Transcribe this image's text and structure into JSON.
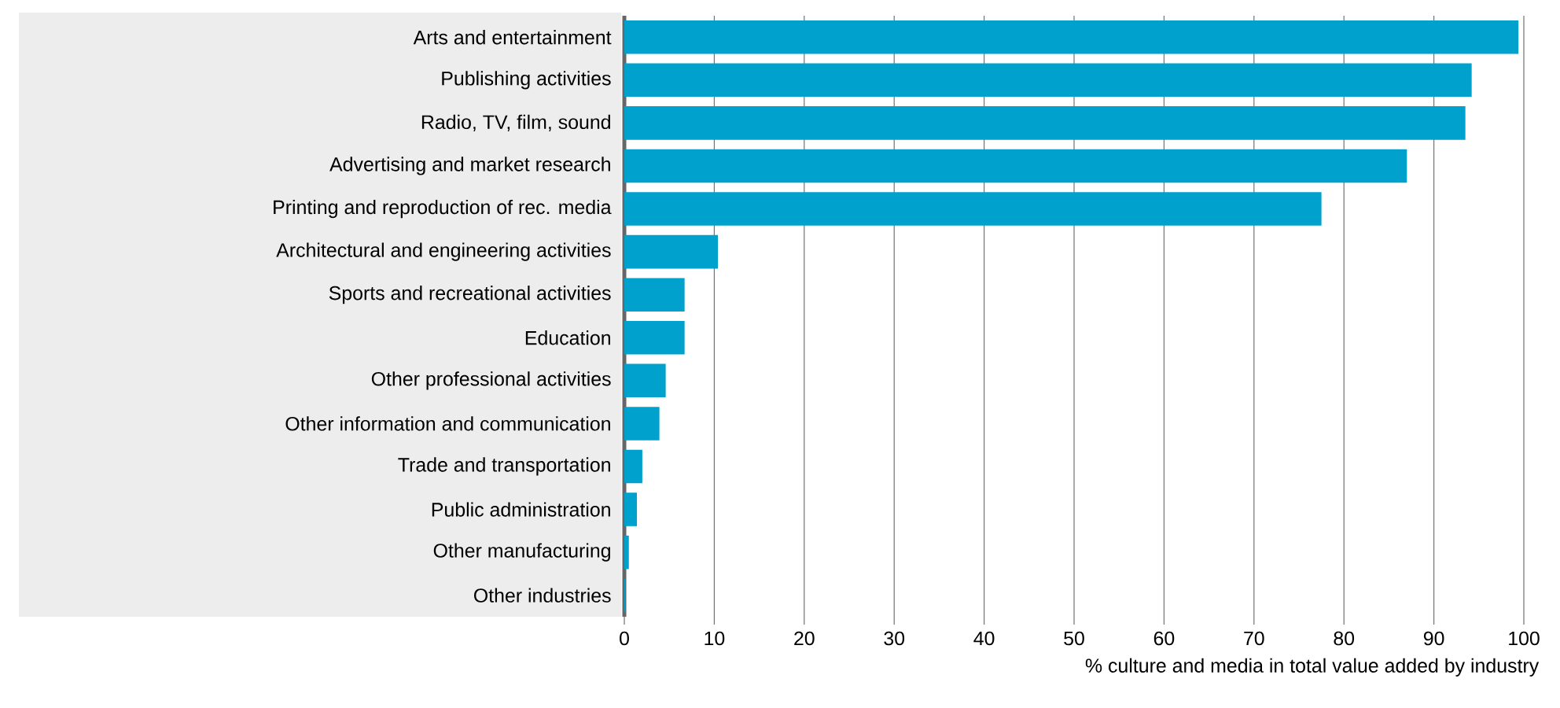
{
  "chart_data": {
    "type": "bar",
    "orientation": "horizontal",
    "xlabel": "% culture and media in total value added by industry",
    "categories": [
      "Arts and entertainment",
      "Publishing activities",
      "Radio, TV, film, sound",
      "Advertising and market research",
      "Printing and reproduction of rec. media",
      "Architectural and engineering activities",
      "Sports and recreational activities",
      "Education",
      "Other professional activities",
      "Other information and communication",
      "Trade and transportation",
      "Public administration",
      "Other manufacturing",
      "Other industries"
    ],
    "values": [
      99.4,
      94.2,
      93.5,
      87.0,
      77.5,
      10.4,
      6.7,
      6.7,
      4.6,
      3.9,
      2.0,
      1.4,
      0.5,
      0.1
    ],
    "color": "#00a1cd",
    "xlim": [
      0,
      100
    ],
    "xticks": [
      0,
      10,
      20,
      30,
      40,
      50,
      60,
      70,
      80,
      90,
      100
    ],
    "grid": "x"
  }
}
